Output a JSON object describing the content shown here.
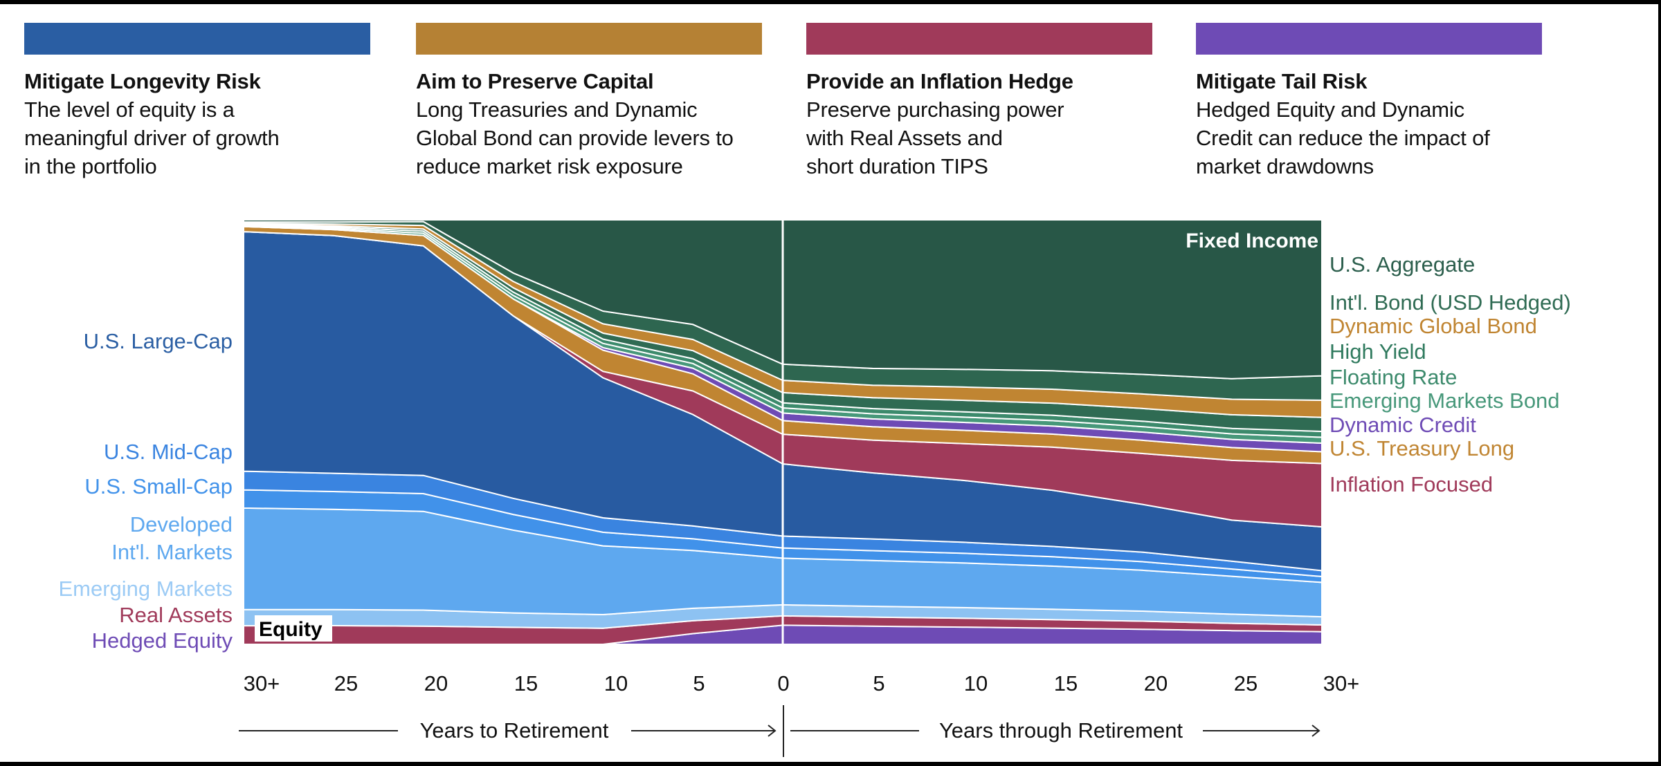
{
  "pillars": [
    {
      "title": "Mitigate Longevity Risk",
      "lines": [
        "The level of equity is a",
        "meaningful driver of growth",
        "in the portfolio"
      ],
      "color": "#2a5ea3"
    },
    {
      "title": "Aim to Preserve Capital",
      "lines": [
        "Long Treasuries and Dynamic",
        "Global Bond can provide levers to",
        "reduce market risk exposure"
      ],
      "color": "#b58134"
    },
    {
      "title": "Provide an Inflation Hedge",
      "lines": [
        "Preserve purchasing power",
        "with Real Assets and",
        "short duration TIPS"
      ],
      "color": "#a03a5a"
    },
    {
      "title": "Mitigate Tail Risk",
      "lines": [
        "Hedged Equity and Dynamic",
        "Credit can reduce the impact of",
        "market drawdowns"
      ],
      "color": "#6e4bb5"
    }
  ],
  "chart_data": {
    "type": "area",
    "stacked": true,
    "title": "",
    "x": [
      -30,
      -25,
      -20,
      -15,
      -10,
      -5,
      0,
      5,
      10,
      15,
      20,
      25,
      30
    ],
    "x_tick_labels": [
      "30+",
      "25",
      "20",
      "15",
      "10",
      "5",
      "0",
      "5",
      "10",
      "15",
      "20",
      "25",
      "30+"
    ],
    "xlabel_left": "Years to Retirement",
    "xlabel_right": "Years through Retirement",
    "ylim": [
      0,
      100
    ],
    "ylabel": "",
    "group_labels": {
      "equity": "Equity",
      "fixed_income": "Fixed Income"
    },
    "series": [
      {
        "name": "Hedged Equity",
        "group": "equity",
        "color": "#6e4bb5",
        "values": [
          0,
          0,
          0,
          0,
          0,
          2.5,
          4.5,
          4.2,
          3.9,
          3.6,
          3.3,
          3.0,
          2.8
        ]
      },
      {
        "name": "Real Assets",
        "group": "equity",
        "color": "#a03a5a",
        "values": [
          4.4,
          4.4,
          4.2,
          4.0,
          3.8,
          3.0,
          2.2,
          2.1,
          2.0,
          1.9,
          1.8,
          1.6,
          1.5
        ]
      },
      {
        "name": "Emerging Markets",
        "group": "equity",
        "color": "#8dc2f2",
        "values": [
          3.8,
          3.8,
          3.7,
          3.4,
          3.2,
          2.9,
          2.6,
          2.5,
          2.4,
          2.3,
          2.2,
          2.0,
          1.8
        ]
      },
      {
        "name": "Developed Int'l. Markets",
        "group": "equity",
        "color": "#5ea8ef",
        "values": [
          24.0,
          23.6,
          22.8,
          19.5,
          16.2,
          13.5,
          11.0,
          10.6,
          10.1,
          9.6,
          9.0,
          8.3,
          7.6
        ]
      },
      {
        "name": "U.S. Small-Cap",
        "group": "equity",
        "color": "#4192ea",
        "values": [
          4.3,
          4.2,
          4.1,
          3.7,
          3.2,
          2.7,
          2.4,
          2.3,
          2.2,
          2.1,
          1.9,
          1.6,
          1.3
        ]
      },
      {
        "name": "U.S. Mid-Cap",
        "group": "equity",
        "color": "#3a84e0",
        "values": [
          4.4,
          4.3,
          4.2,
          3.8,
          3.4,
          3.0,
          2.8,
          2.7,
          2.5,
          2.3,
          2.1,
          1.7,
          1.3
        ]
      },
      {
        "name": "U.S. Large-Cap",
        "group": "equity",
        "color": "#285ba1",
        "values": [
          56.6,
          56.0,
          53.0,
          43.0,
          33.0,
          26.0,
          17.0,
          15.3,
          14.0,
          12.5,
          10.5,
          9.0,
          9.7
        ]
      },
      {
        "name": "Inflation Focused",
        "group": "fixed_income",
        "color": "#a03a5a",
        "values": [
          0,
          0,
          0,
          0,
          1.5,
          5.5,
          7.0,
          7.6,
          8.3,
          9.6,
          11.2,
          13.1,
          14.0
        ]
      },
      {
        "name": "U.S. Treasury Long",
        "group": "fixed_income",
        "color": "#c08532",
        "values": [
          1.2,
          1.4,
          2.4,
          4.0,
          5.0,
          4.0,
          3.2,
          3.1,
          3.0,
          2.9,
          2.9,
          2.8,
          2.6
        ]
      },
      {
        "name": "Dynamic Credit",
        "group": "fixed_income",
        "color": "#6e4bb5",
        "values": [
          0,
          0,
          0,
          0,
          0.6,
          1.3,
          1.8,
          1.8,
          1.8,
          1.8,
          1.8,
          1.8,
          1.9
        ]
      },
      {
        "name": "Emerging Markets Bond",
        "group": "fixed_income",
        "color": "#47987a",
        "values": [
          0.2,
          0.3,
          0.5,
          0.8,
          1.0,
          1.1,
          1.2,
          1.2,
          1.2,
          1.2,
          1.2,
          1.2,
          1.3
        ]
      },
      {
        "name": "Floating Rate",
        "group": "fixed_income",
        "color": "#3c8a6c",
        "values": [
          0.2,
          0.3,
          0.5,
          0.8,
          1.0,
          1.1,
          1.2,
          1.2,
          1.2,
          1.2,
          1.2,
          1.2,
          1.3
        ]
      },
      {
        "name": "High Yield",
        "group": "fixed_income",
        "color": "#2f6b53",
        "values": [
          0.2,
          0.3,
          0.5,
          1.0,
          1.4,
          1.9,
          2.4,
          2.5,
          2.6,
          2.7,
          2.8,
          3.0,
          3.1
        ]
      },
      {
        "name": "Dynamic Global Bond",
        "group": "fixed_income",
        "color": "#c08532",
        "values": [
          0.2,
          0.4,
          0.8,
          1.5,
          2.2,
          2.6,
          2.9,
          2.9,
          3.0,
          3.1,
          3.2,
          3.4,
          3.8
        ]
      },
      {
        "name": "Int'l. Bond (USD Hedged)",
        "group": "fixed_income",
        "color": "#2e6650",
        "values": [
          0.3,
          0.5,
          0.9,
          2.0,
          3.0,
          3.5,
          3.8,
          3.9,
          4.0,
          4.1,
          4.3,
          4.5,
          5.4
        ]
      },
      {
        "name": "U.S. Aggregate",
        "group": "fixed_income",
        "color": "#285747",
        "values": [
          0.5,
          0.5,
          0.4,
          12.5,
          21.5,
          24.4,
          34.0,
          34.4,
          33.8,
          33.6,
          34.0,
          34.8,
          34.5
        ]
      }
    ],
    "left_labels": [
      {
        "text": "U.S. Large-Cap",
        "color": "#2a5ea3"
      },
      {
        "text": "U.S. Mid-Cap",
        "color": "#3a84e0"
      },
      {
        "text": "U.S. Small-Cap",
        "color": "#4192ea"
      },
      {
        "text": "Developed",
        "color": "#5ea8ef"
      },
      {
        "text": "Int'l. Markets",
        "color": "#5ea8ef"
      },
      {
        "text": "Emerging Markets",
        "color": "#9ccbf5"
      },
      {
        "text": "Real Assets",
        "color": "#a03a5a"
      },
      {
        "text": "Hedged Equity",
        "color": "#6e4bb5"
      }
    ],
    "right_labels": [
      {
        "text": "U.S. Aggregate",
        "color": "#2b5e4c"
      },
      {
        "text": "Int'l. Bond (USD Hedged)",
        "color": "#2f6b53"
      },
      {
        "text": "Dynamic Global Bond",
        "color": "#c08532"
      },
      {
        "text": "High Yield",
        "color": "#2f7a5e"
      },
      {
        "text": "Floating Rate",
        "color": "#3c8a6c"
      },
      {
        "text": "Emerging Markets Bond",
        "color": "#47987a"
      },
      {
        "text": "Dynamic Credit",
        "color": "#6e4bb5"
      },
      {
        "text": "U.S. Treasury Long",
        "color": "#c08532"
      },
      {
        "text": "Inflation Focused",
        "color": "#a03a5a"
      }
    ]
  }
}
